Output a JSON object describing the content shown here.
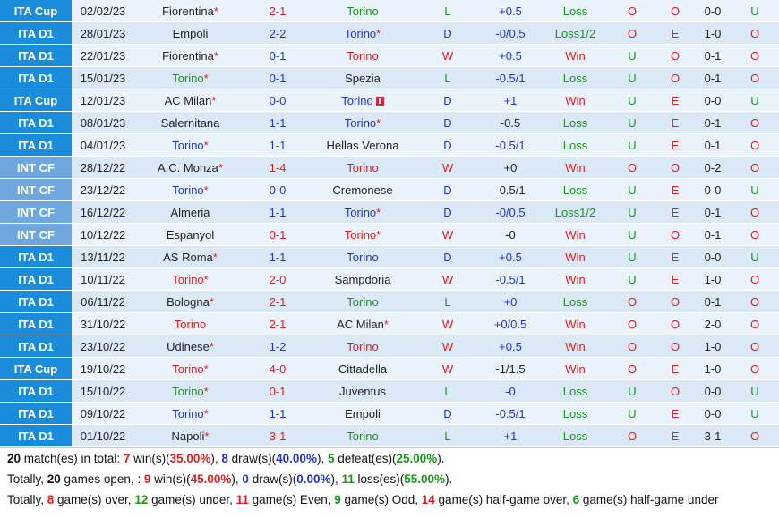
{
  "rows": [
    {
      "comp": "ITA Cup",
      "type": "cup",
      "date": "02/02/23",
      "home": "Fiorentina",
      "home_star": true,
      "home_color": "dark",
      "score": "2-1",
      "score_color": "red",
      "away": "Torino",
      "away_star": false,
      "away_color": "green",
      "res": "L",
      "hcp": "+0.5",
      "hcp_dark": false,
      "hres": "Loss",
      "ou": "O",
      "oe": "O",
      "ht": "0-0",
      "ft": "U"
    },
    {
      "comp": "ITA D1",
      "type": "d1",
      "date": "28/01/23",
      "home": "Empoli",
      "home_star": false,
      "home_color": "dark",
      "score": "2-2",
      "score_color": "blue",
      "away": "Torino",
      "away_star": true,
      "away_color": "blue",
      "res": "D",
      "hcp": "-0/0.5",
      "hcp_dark": false,
      "hres": "Loss1/2",
      "ou": "O",
      "oe": "E",
      "ht": "1-0",
      "ft": "O"
    },
    {
      "comp": "ITA D1",
      "type": "d1",
      "date": "22/01/23",
      "home": "Fiorentina",
      "home_star": true,
      "home_color": "dark",
      "score": "0-1",
      "score_color": "blue",
      "away": "Torino",
      "away_star": false,
      "away_color": "red",
      "res": "W",
      "hcp": "+0.5",
      "hcp_dark": false,
      "hres": "Win",
      "ou": "U",
      "oe": "O",
      "ht": "0-1",
      "ft": "O"
    },
    {
      "comp": "ITA D1",
      "type": "d1",
      "date": "15/01/23",
      "home": "Torino",
      "home_star": true,
      "home_color": "green",
      "score": "0-1",
      "score_color": "blue",
      "away": "Spezia",
      "away_star": false,
      "away_color": "dark",
      "res": "L",
      "hcp": "-0.5/1",
      "hcp_dark": false,
      "hres": "Loss",
      "ou": "U",
      "oe": "O",
      "ht": "0-1",
      "ft": "O"
    },
    {
      "comp": "ITA Cup",
      "type": "cup",
      "date": "12/01/23",
      "home": "AC Milan",
      "home_star": true,
      "home_color": "dark",
      "score": "0-0",
      "score_color": "blue",
      "away": "Torino",
      "away_star": false,
      "away_color": "blue",
      "away_flag": true,
      "res": "D",
      "hcp": "+1",
      "hcp_dark": false,
      "hres": "Win",
      "ou": "U",
      "oe": "E",
      "ht": "0-0",
      "ft": "U"
    },
    {
      "comp": "ITA D1",
      "type": "d1",
      "date": "08/01/23",
      "home": "Salernitana",
      "home_star": false,
      "home_color": "dark",
      "score": "1-1",
      "score_color": "blue",
      "away": "Torino",
      "away_star": true,
      "away_color": "blue",
      "res": "D",
      "hcp": "-0.5",
      "hcp_dark": true,
      "hres": "Loss",
      "ou": "U",
      "oe": "E",
      "ht": "0-1",
      "ft": "O"
    },
    {
      "comp": "ITA D1",
      "type": "d1",
      "date": "04/01/23",
      "home": "Torino",
      "home_star": true,
      "home_color": "blue",
      "score": "1-1",
      "score_color": "blue",
      "away": "Hellas Verona",
      "away_star": false,
      "away_color": "dark",
      "res": "D",
      "hcp": "-0.5/1",
      "hcp_dark": false,
      "hres": "Loss",
      "ou": "U",
      "oe": "E",
      "ht": "0-1",
      "ft": "O"
    },
    {
      "comp": "INT CF",
      "type": "intcf",
      "date": "28/12/22",
      "home": "A.C. Monza",
      "home_star": true,
      "home_color": "dark",
      "score": "1-4",
      "score_color": "red",
      "away": "Torino",
      "away_star": false,
      "away_color": "red",
      "res": "W",
      "hcp": "+0",
      "hcp_dark": true,
      "hres": "Win",
      "ou": "O",
      "oe": "O",
      "ht": "0-2",
      "ft": "O"
    },
    {
      "comp": "INT CF",
      "type": "intcf",
      "date": "23/12/22",
      "home": "Torino",
      "home_star": true,
      "home_color": "blue",
      "score": "0-0",
      "score_color": "blue",
      "away": "Cremonese",
      "away_star": false,
      "away_color": "dark",
      "res": "D",
      "hcp": "-0.5/1",
      "hcp_dark": true,
      "hres": "Loss",
      "ou": "U",
      "oe": "E",
      "ht": "0-0",
      "ft": "U"
    },
    {
      "comp": "INT CF",
      "type": "intcf",
      "date": "16/12/22",
      "home": "Almeria",
      "home_star": false,
      "home_color": "dark",
      "score": "1-1",
      "score_color": "blue",
      "away": "Torino",
      "away_star": true,
      "away_color": "blue",
      "res": "D",
      "hcp": "-0/0.5",
      "hcp_dark": false,
      "hres": "Loss1/2",
      "ou": "U",
      "oe": "E",
      "ht": "0-1",
      "ft": "O"
    },
    {
      "comp": "INT CF",
      "type": "intcf",
      "date": "10/12/22",
      "home": "Espanyol",
      "home_star": false,
      "home_color": "dark",
      "score": "0-1",
      "score_color": "red",
      "away": "Torino",
      "away_star": true,
      "away_color": "red",
      "res": "W",
      "hcp": "-0",
      "hcp_dark": true,
      "hres": "Win",
      "ou": "U",
      "oe": "O",
      "ht": "0-1",
      "ft": "O"
    },
    {
      "comp": "ITA D1",
      "type": "d1",
      "date": "13/11/22",
      "home": "AS Roma",
      "home_star": true,
      "home_color": "dark",
      "score": "1-1",
      "score_color": "blue",
      "away": "Torino",
      "away_star": false,
      "away_color": "blue",
      "res": "D",
      "hcp": "+0.5",
      "hcp_dark": false,
      "hres": "Win",
      "ou": "U",
      "oe": "E",
      "ht": "0-0",
      "ft": "U"
    },
    {
      "comp": "ITA D1",
      "type": "d1",
      "date": "10/11/22",
      "home": "Torino",
      "home_star": true,
      "home_color": "red",
      "score": "2-0",
      "score_color": "red",
      "away": "Sampdoria",
      "away_star": false,
      "away_color": "dark",
      "res": "W",
      "hcp": "-0.5/1",
      "hcp_dark": false,
      "hres": "Win",
      "ou": "U",
      "oe": "E",
      "ht": "1-0",
      "ft": "O"
    },
    {
      "comp": "ITA D1",
      "type": "d1",
      "date": "06/11/22",
      "home": "Bologna",
      "home_star": true,
      "home_color": "dark",
      "score": "2-1",
      "score_color": "red",
      "away": "Torino",
      "away_star": false,
      "away_color": "green",
      "res": "L",
      "hcp": "+0",
      "hcp_dark": false,
      "hres": "Loss",
      "ou": "O",
      "oe": "O",
      "ht": "0-1",
      "ft": "O"
    },
    {
      "comp": "ITA D1",
      "type": "d1",
      "date": "31/10/22",
      "home": "Torino",
      "home_star": false,
      "home_color": "red",
      "score": "2-1",
      "score_color": "red",
      "away": "AC Milan",
      "away_star": true,
      "away_color": "dark",
      "res": "W",
      "hcp": "+0/0.5",
      "hcp_dark": false,
      "hres": "Win",
      "ou": "O",
      "oe": "O",
      "ht": "2-0",
      "ft": "O"
    },
    {
      "comp": "ITA D1",
      "type": "d1",
      "date": "23/10/22",
      "home": "Udinese",
      "home_star": true,
      "home_color": "dark",
      "score": "1-2",
      "score_color": "blue",
      "away": "Torino",
      "away_star": false,
      "away_color": "red",
      "res": "W",
      "hcp": "+0.5",
      "hcp_dark": false,
      "hres": "Win",
      "ou": "O",
      "oe": "O",
      "ht": "1-0",
      "ft": "O"
    },
    {
      "comp": "ITA Cup",
      "type": "cup",
      "date": "19/10/22",
      "home": "Torino",
      "home_star": true,
      "home_color": "red",
      "score": "4-0",
      "score_color": "red",
      "away": "Cittadella",
      "away_star": false,
      "away_color": "dark",
      "res": "W",
      "hcp": "-1/1.5",
      "hcp_dark": true,
      "hres": "Win",
      "ou": "O",
      "oe": "E",
      "ht": "1-0",
      "ft": "O"
    },
    {
      "comp": "ITA D1",
      "type": "d1",
      "date": "15/10/22",
      "home": "Torino",
      "home_star": true,
      "home_color": "green",
      "score": "0-1",
      "score_color": "red",
      "away": "Juventus",
      "away_star": false,
      "away_color": "dark",
      "res": "L",
      "hcp": "-0",
      "hcp_dark": false,
      "hres": "Loss",
      "ou": "U",
      "oe": "O",
      "ht": "0-0",
      "ft": "U"
    },
    {
      "comp": "ITA D1",
      "type": "d1",
      "date": "09/10/22",
      "home": "Torino",
      "home_star": true,
      "home_color": "blue",
      "score": "1-1",
      "score_color": "blue",
      "away": "Empoli",
      "away_star": false,
      "away_color": "dark",
      "res": "D",
      "hcp": "-0.5/1",
      "hcp_dark": false,
      "hres": "Loss",
      "ou": "U",
      "oe": "E",
      "ht": "0-0",
      "ft": "U"
    },
    {
      "comp": "ITA D1",
      "type": "d1",
      "date": "01/10/22",
      "home": "Napoli",
      "home_star": true,
      "home_color": "dark",
      "score": "3-1",
      "score_color": "red",
      "away": "Torino",
      "away_star": false,
      "away_color": "green",
      "res": "L",
      "hcp": "+1",
      "hcp_dark": false,
      "hres": "Loss",
      "ou": "O",
      "oe": "E",
      "ht": "3-1",
      "ft": "O"
    }
  ],
  "summary": {
    "line1": {
      "count": "20",
      "t1": " match(es) in total: ",
      "wins": "7",
      "t2": " win(s)(",
      "win_pct": "35.00%",
      "t3": "), ",
      "draws": "8",
      "t4": " draw(s)(",
      "draw_pct": "40.00%",
      "t5": "), ",
      "defeats": "5",
      "t6": " defeat(es)(",
      "defeat_pct": "25.00%",
      "t7": ")."
    },
    "line2": {
      "t0": "Totally, ",
      "games": "20",
      "t1": " games open, : ",
      "wins": "9",
      "t2": " win(s)(",
      "win_pct": "45.00%",
      "t3": "), ",
      "draws": "0",
      "t4": " draw(s)(",
      "draw_pct": "0.00%",
      "t5": "), ",
      "loss": "11",
      "t6": " loss(es)(",
      "loss_pct": "55.00%",
      "t7": ")."
    },
    "line3": {
      "t0": "Totally, ",
      "over": "8",
      "t1": " game(s) over, ",
      "under": "12",
      "t2": " game(s) under, ",
      "even": "11",
      "t3": " game(s) Even, ",
      "odd": "9",
      "t4": " game(s) Odd, ",
      "hg_over": "14",
      "t5": " game(s) half-game over, ",
      "hg_under": "6",
      "t6": " game(s) half-game under"
    }
  }
}
